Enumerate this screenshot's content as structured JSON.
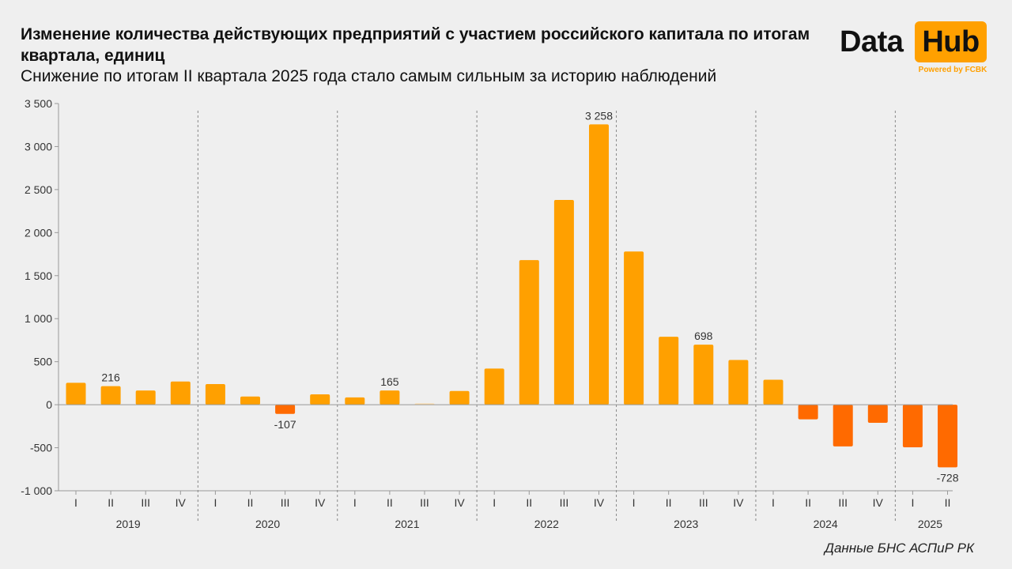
{
  "header": {
    "title": "Изменение количества действующих предприятий с участием российского капитала по итогам квартала, единиц",
    "subtitle": "Снижение по итогам II квартала 2025 года стало самым сильным за историю наблюдений"
  },
  "logo": {
    "data_text": "Data",
    "hub_text": "Hub",
    "powered_text": "Powered by FCBK"
  },
  "source": "Данные БНС АСПиР РК",
  "colors": {
    "positive": "#ffa000",
    "negative": "#ff6a00",
    "faint": "#ffd9a0",
    "axis": "#999999",
    "divider": "#888888",
    "background": "#efefef"
  },
  "chart_data": {
    "type": "bar",
    "title": "",
    "xlabel": "",
    "ylabel": "",
    "ylim": [
      -1000,
      3500
    ],
    "y_ticks": [
      "3 500",
      "3 000",
      "2 500",
      "2 000",
      "1 500",
      "1 000",
      "500",
      "0",
      "-500",
      "-1 000"
    ],
    "y_tick_values": [
      3500,
      3000,
      2500,
      2000,
      1500,
      1000,
      500,
      0,
      -500,
      -1000
    ],
    "years": [
      {
        "label": "2019",
        "quarters": 4
      },
      {
        "label": "2020",
        "quarters": 4
      },
      {
        "label": "2021",
        "quarters": 4
      },
      {
        "label": "2022",
        "quarters": 4
      },
      {
        "label": "2023",
        "quarters": 4
      },
      {
        "label": "2024",
        "quarters": 4
      },
      {
        "label": "2025",
        "quarters": 2
      }
    ],
    "categories": [
      "I",
      "II",
      "III",
      "IV",
      "I",
      "II",
      "III",
      "IV",
      "I",
      "II",
      "III",
      "IV",
      "I",
      "II",
      "III",
      "IV",
      "I",
      "II",
      "III",
      "IV",
      "I",
      "II",
      "III",
      "IV",
      "I",
      "II"
    ],
    "values": [
      255,
      216,
      165,
      270,
      240,
      95,
      -107,
      120,
      85,
      165,
      15,
      160,
      420,
      1680,
      2380,
      3258,
      1780,
      790,
      698,
      520,
      290,
      -170,
      -485,
      -210,
      -495,
      -728
    ],
    "data_labels": [
      {
        "index": 1,
        "text": "216"
      },
      {
        "index": 6,
        "text": "-107"
      },
      {
        "index": 9,
        "text": "165"
      },
      {
        "index": 15,
        "text": "3 258"
      },
      {
        "index": 18,
        "text": "698"
      },
      {
        "index": 25,
        "text": "-728"
      }
    ],
    "grid": false,
    "legend": "none"
  }
}
